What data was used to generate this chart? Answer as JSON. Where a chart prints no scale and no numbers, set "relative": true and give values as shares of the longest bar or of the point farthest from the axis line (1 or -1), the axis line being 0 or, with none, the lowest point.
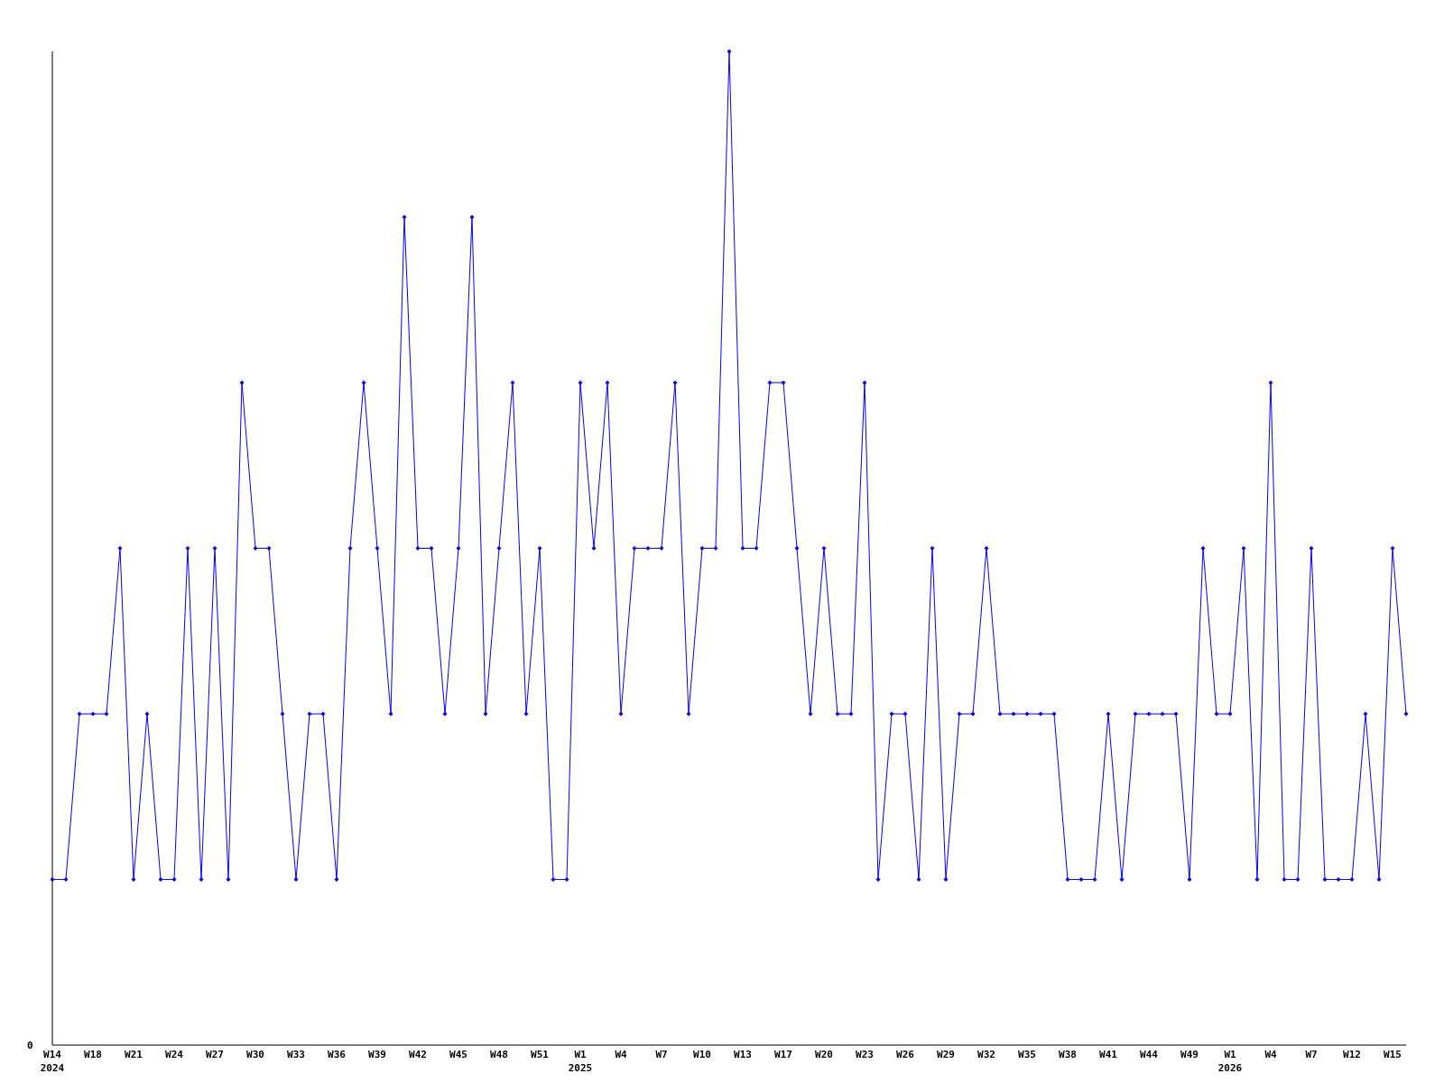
{
  "chart_data": {
    "type": "line",
    "relative": true,
    "marker": "diamond",
    "line_style": "solid",
    "categories": [
      "W14\n2024",
      null,
      null,
      "W18",
      null,
      null,
      "W21",
      null,
      null,
      "W24",
      null,
      null,
      "W27",
      null,
      null,
      "W30",
      null,
      null,
      "W33",
      null,
      null,
      "W36",
      null,
      null,
      "W39",
      null,
      null,
      "W42",
      null,
      null,
      "W45",
      null,
      null,
      "W48",
      null,
      null,
      "W51",
      null,
      null,
      "W1\n2025",
      null,
      null,
      "W4",
      null,
      null,
      "W7",
      null,
      null,
      "W10",
      null,
      null,
      "W13",
      null,
      null,
      "W17",
      null,
      null,
      "W20",
      null,
      null,
      "W23",
      null,
      null,
      "W26",
      null,
      null,
      "W29",
      null,
      null,
      "W32",
      null,
      null,
      "W35",
      null,
      null,
      "W38",
      null,
      null,
      "W41",
      null,
      null,
      "W44",
      null,
      null,
      "W49",
      null,
      null,
      "W1\n2026",
      null,
      null,
      "W4",
      null,
      null,
      "W7",
      null,
      null,
      "W12",
      null,
      null,
      "W15",
      null
    ],
    "series": [
      {
        "color": "#0000ff",
        "values": [
          0.1667,
          0.1667,
          0.3333,
          0.3333,
          0.3333,
          0.5,
          0.1667,
          0.3333,
          0.1667,
          0.1667,
          0.5,
          0.1667,
          0.5,
          0.1667,
          0.6667,
          0.5,
          0.5,
          0.3333,
          0.1667,
          0.3333,
          0.3333,
          0.1667,
          0.5,
          0.6667,
          0.5,
          0.3333,
          0.8333,
          0.5,
          0.5,
          0.3333,
          0.5,
          0.8333,
          0.3333,
          0.5,
          0.6667,
          0.3333,
          0.5,
          0.1667,
          0.1667,
          0.6667,
          0.5,
          0.6667,
          0.3333,
          0.5,
          0.5,
          0.5,
          0.6667,
          0.3333,
          0.5,
          0.5,
          1,
          0.5,
          0.5,
          0.6667,
          0.6667,
          0.5,
          0.3333,
          0.5,
          0.3333,
          0.3333,
          0.6667,
          0.1667,
          0.3333,
          0.3333,
          0.1667,
          0.5,
          0.1667,
          0.3333,
          0.3333,
          0.5,
          0.3333,
          0.3333,
          0.3333,
          0.3333,
          0.3333,
          0.1667,
          0.1667,
          0.1667,
          0.3333,
          0.1667,
          0.3333,
          0.3333,
          0.3333,
          0.3333,
          0.1667,
          0.5,
          0.3333,
          0.3333,
          0.5,
          0.1667,
          0.6667,
          0.1667,
          0.1667,
          0.5,
          0.1667,
          0.1667,
          0.1667,
          0.3333,
          0.1667,
          0.5,
          0.3333
        ]
      }
    ],
    "annotations": [
      "0"
    ]
  }
}
